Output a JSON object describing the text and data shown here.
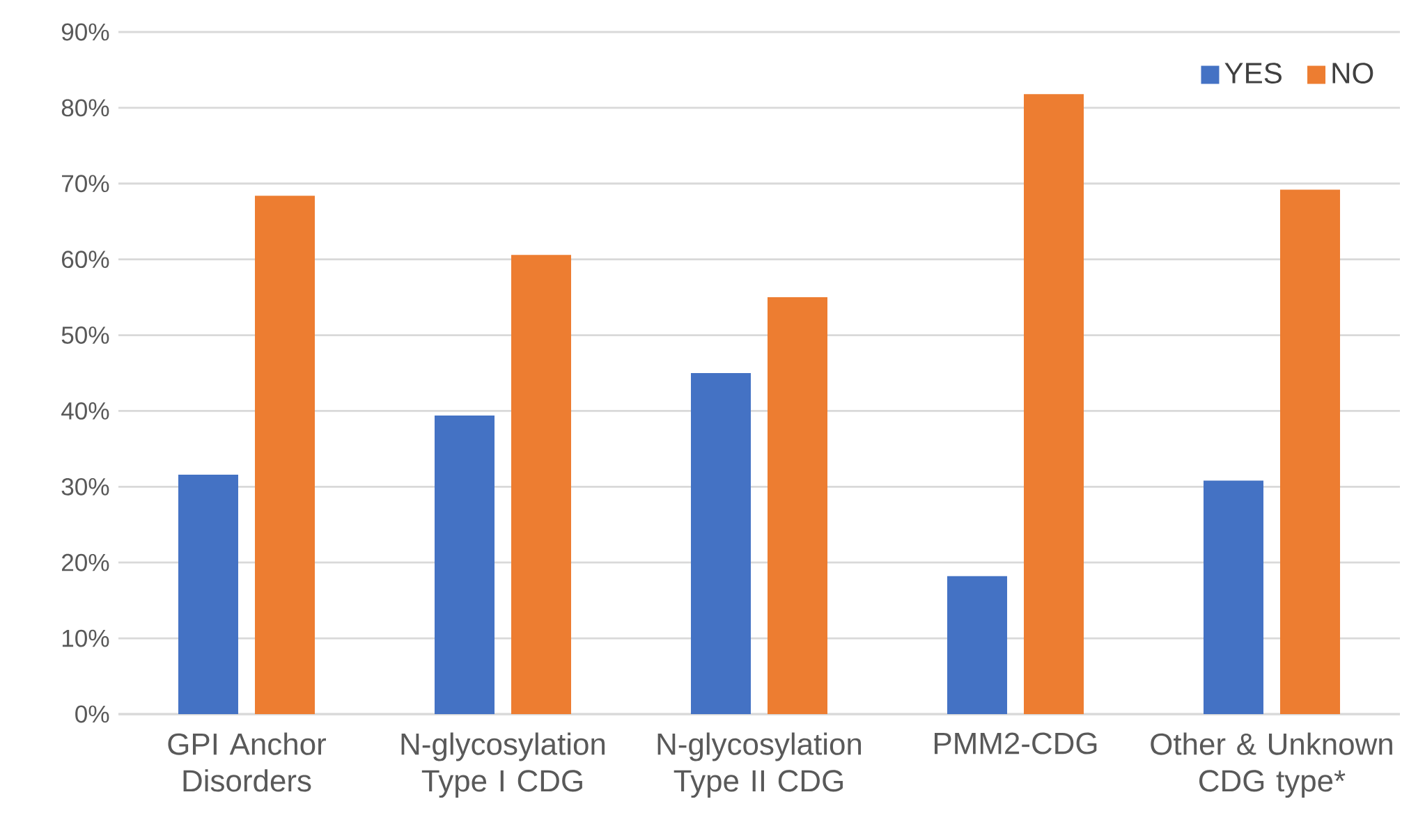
{
  "chart_data": {
    "type": "bar",
    "categories": [
      "GPI Anchor Disorders",
      "N-glycosylation Type I CDG",
      "N-glycosylation Type II CDG",
      "PMM2-CDG",
      "Other & Unknown CDG type*"
    ],
    "series": [
      {
        "name": "YES",
        "color": "#4472c4",
        "values": [
          31.6,
          39.4,
          45,
          18.2,
          30.8
        ]
      },
      {
        "name": "NO",
        "color": "#ed7d31",
        "values": [
          68.4,
          60.6,
          55,
          81.8,
          69.2
        ]
      }
    ],
    "ylim": [
      0,
      90
    ],
    "yticks": [
      {
        "value": 0,
        "label": "0%"
      },
      {
        "value": 10,
        "label": "10%"
      },
      {
        "value": 20,
        "label": "20%"
      },
      {
        "value": 30,
        "label": "30%"
      },
      {
        "value": 40,
        "label": "40%"
      },
      {
        "value": 50,
        "label": "50%"
      },
      {
        "value": 60,
        "label": "60%"
      },
      {
        "value": 70,
        "label": "70%"
      },
      {
        "value": 80,
        "label": "80%"
      },
      {
        "value": 90,
        "label": "90%"
      }
    ],
    "grid": "y",
    "legend": "top right"
  }
}
